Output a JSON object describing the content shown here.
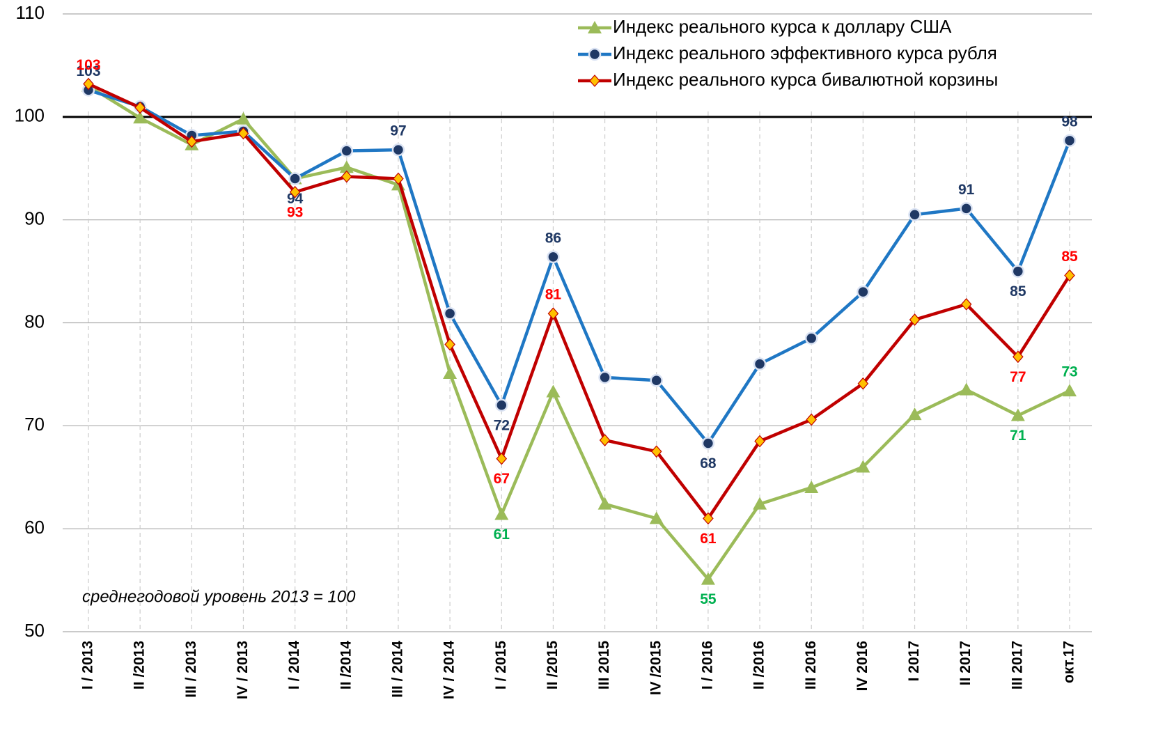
{
  "chart_data": {
    "type": "line",
    "annotation": "среднегодовой уровень 2013 = 100",
    "categories": [
      "I / 2013",
      "II /2013",
      "III / 2013",
      "IV / 2013",
      "I / 2014",
      "II /2014",
      "III / 2014",
      "IV / 2014",
      "I / 2015",
      "II /2015",
      "III 2015",
      "IV /2015",
      "I / 2016",
      "II /2016",
      "III 2016",
      "IV 2016",
      "I 2017",
      "II 2017",
      "III 2017",
      "окт.17"
    ],
    "series": [
      {
        "name": "Индекс реального курса к доллару США",
        "color": "#9bbb59",
        "label_color": "#00b050",
        "marker": "triangle",
        "values": [
          103.0,
          99.9,
          97.3,
          99.8,
          94.0,
          95.1,
          93.4,
          75.1,
          61.4,
          73.3,
          62.4,
          61.0,
          55.1,
          62.4,
          64.0,
          66.0,
          71.1,
          73.5,
          71.0,
          73.4
        ],
        "value_labels": [
          null,
          null,
          null,
          null,
          null,
          null,
          null,
          null,
          "61",
          null,
          null,
          null,
          "55",
          null,
          null,
          null,
          null,
          null,
          "71",
          "73"
        ]
      },
      {
        "name": "Индекс реального эффективного курса рубля",
        "color": "#1f77c4",
        "label_color": "#1f3864",
        "marker": "circle",
        "values": [
          102.6,
          101.0,
          98.2,
          98.6,
          94.0,
          96.7,
          96.8,
          80.9,
          72.0,
          86.4,
          74.7,
          74.4,
          68.3,
          76.0,
          78.5,
          83.0,
          90.5,
          91.1,
          85.0,
          97.7
        ],
        "value_labels": [
          "103",
          null,
          null,
          null,
          "94",
          null,
          "97",
          null,
          "72",
          "86",
          null,
          null,
          "68",
          null,
          null,
          null,
          null,
          "91",
          "85",
          "98"
        ]
      },
      {
        "name": "Индекс реального курса бивалютной корзины",
        "color": "#c00000",
        "label_color": "#ff0000",
        "marker": "diamond",
        "values": [
          103.2,
          100.9,
          97.6,
          98.4,
          92.7,
          94.2,
          94.0,
          77.9,
          66.8,
          80.9,
          68.6,
          67.5,
          61.0,
          68.5,
          70.6,
          74.1,
          80.3,
          81.8,
          76.7,
          84.6
        ],
        "value_labels": [
          "103",
          null,
          null,
          null,
          "93",
          null,
          null,
          null,
          "67",
          "81",
          null,
          null,
          "61",
          null,
          null,
          null,
          null,
          null,
          "77",
          "85"
        ]
      }
    ],
    "ylim": [
      50,
      110
    ],
    "yticks": [
      50,
      60,
      70,
      80,
      90,
      100,
      110
    ],
    "reference_line": 100,
    "grid": true,
    "legend": "top-right"
  }
}
